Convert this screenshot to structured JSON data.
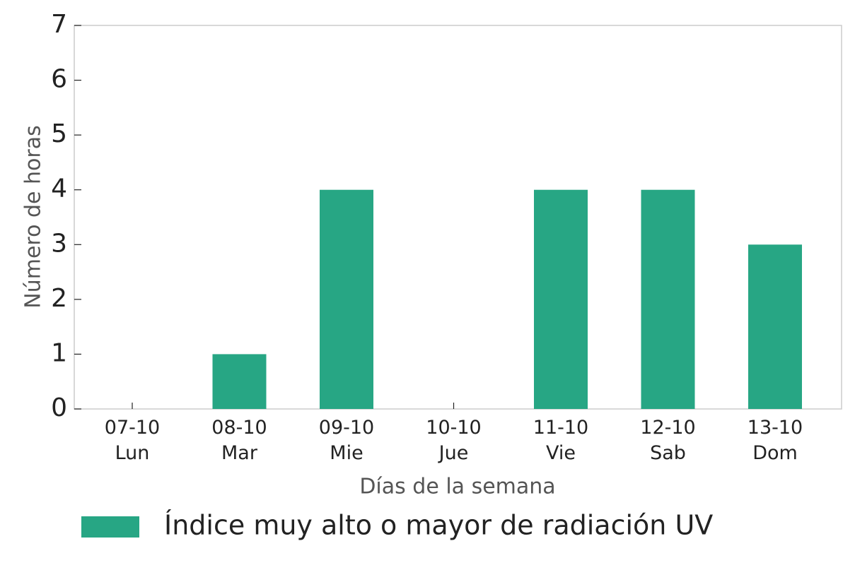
{
  "chart_data": {
    "type": "bar",
    "categories": [
      [
        "07-10",
        "Lun"
      ],
      [
        "08-10",
        "Mar"
      ],
      [
        "09-10",
        "Mie"
      ],
      [
        "10-10",
        "Jue"
      ],
      [
        "11-10",
        "Vie"
      ],
      [
        "12-10",
        "Sab"
      ],
      [
        "13-10",
        "Dom"
      ]
    ],
    "series": [
      {
        "name": "Índice muy alto o mayor de radiación UV",
        "color": "#27a684",
        "values": [
          0,
          1,
          4,
          0,
          4,
          4,
          3
        ]
      }
    ],
    "ylim": [
      0,
      7
    ],
    "yticks": [
      0,
      1,
      2,
      3,
      4,
      5,
      6,
      7
    ],
    "ylabel": "Número de horas",
    "xlabel": "Días de la semana",
    "grid": false
  }
}
